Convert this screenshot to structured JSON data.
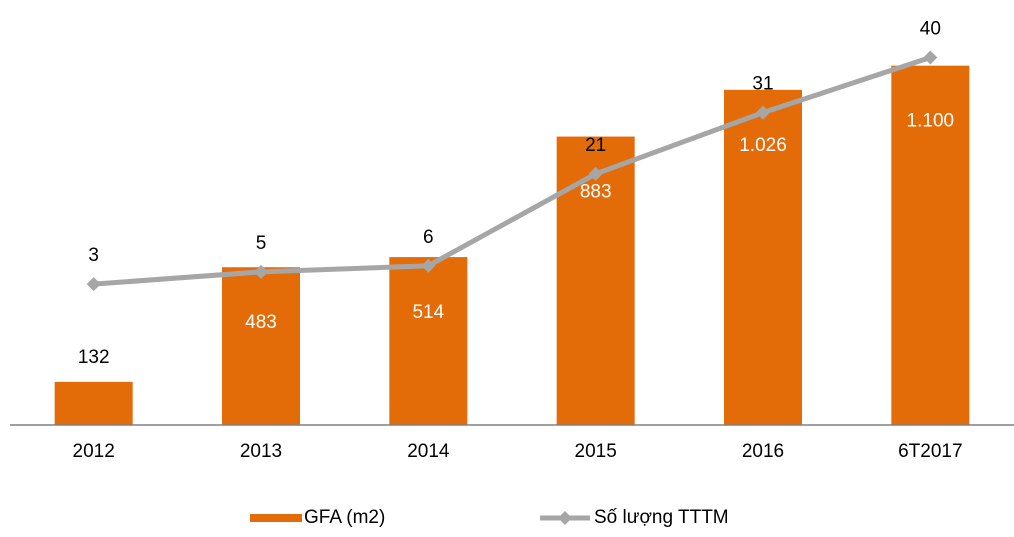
{
  "chart_data": {
    "type": "bar",
    "categories": [
      "2012",
      "2013",
      "2014",
      "2015",
      "2016",
      "6T2017"
    ],
    "series": [
      {
        "name": "GFA (m2)",
        "type": "bar",
        "color": "#e36c09",
        "values": [
          132,
          483,
          514,
          883,
          1026,
          1100
        ],
        "value_labels": [
          "132",
          "483",
          "514",
          "883",
          "1.026",
          "1.100"
        ]
      },
      {
        "name": "Số lượng TTTM",
        "type": "line",
        "axis": "y2",
        "color": "#a6a6a6",
        "values": [
          3,
          5,
          6,
          21,
          31,
          40
        ]
      }
    ],
    "ylim": [
      0,
      1200
    ],
    "y2lim": [
      -20,
      44
    ],
    "legend": "bottom"
  }
}
